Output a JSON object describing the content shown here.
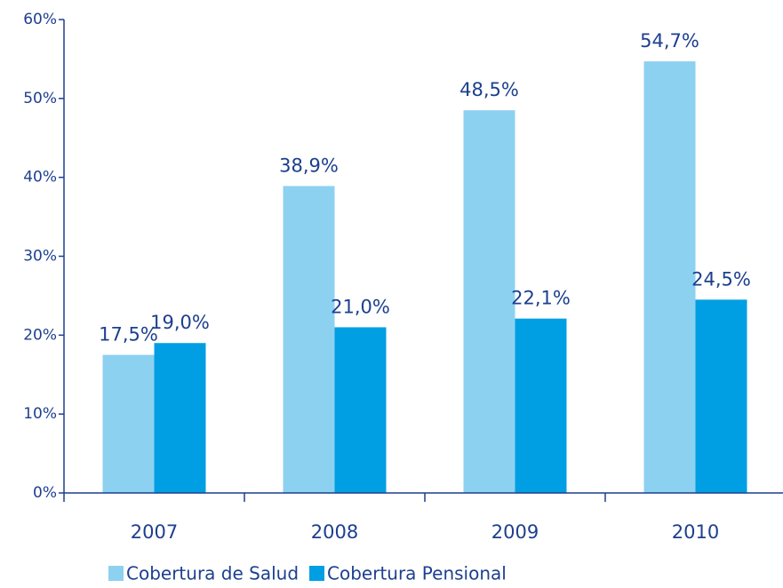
{
  "chart_data": {
    "type": "bar",
    "categories": [
      "2007",
      "2008",
      "2009",
      "2010"
    ],
    "series": [
      {
        "name": "Cobertura de Salud",
        "color": "#8dd1f1",
        "values": [
          17.5,
          38.9,
          48.5,
          54.7
        ],
        "value_labels": [
          "17,5%",
          "38,9%",
          "48,5%",
          "54,7%"
        ]
      },
      {
        "name": "Cobertura Pensional",
        "color": "#009fe3",
        "values": [
          19.0,
          21.0,
          22.1,
          24.5
        ],
        "value_labels": [
          "19,0%",
          "21,0%",
          "22,1%",
          "24,5%"
        ]
      }
    ],
    "ylim": [
      0,
      60
    ],
    "yticks": [
      {
        "value": 0,
        "label": "0%"
      },
      {
        "value": 10,
        "label": "10%"
      },
      {
        "value": 20,
        "label": "20%"
      },
      {
        "value": 30,
        "label": "30%"
      },
      {
        "value": 40,
        "label": "40%"
      },
      {
        "value": 50,
        "label": "50%"
      },
      {
        "value": 60,
        "label": "60%"
      }
    ],
    "grid": false
  }
}
